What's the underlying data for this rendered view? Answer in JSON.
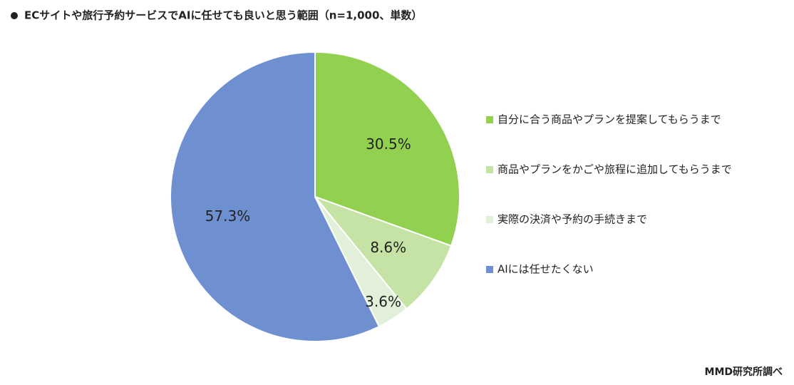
{
  "chart_data": {
    "type": "pie",
    "title": "ECサイトや旅行予約サービスでAIに任せても良いと思う範囲（n=1,000、単数）",
    "categories": [
      "自分に合う商品やプランを提案してもらうまで",
      "商品やプランをかごや旅程に追加してもらうまで",
      "実際の決済や予約の手続きまで",
      "AIには任せたくない"
    ],
    "values": [
      30.5,
      8.6,
      3.6,
      57.3
    ],
    "value_labels": [
      "30.5%",
      "8.6%",
      "3.6%",
      "57.3%"
    ],
    "colors": [
      "#92d050",
      "#c5e3a4",
      "#e2f0d9",
      "#6f90d0"
    ],
    "source": "MMD研究所調べ"
  }
}
